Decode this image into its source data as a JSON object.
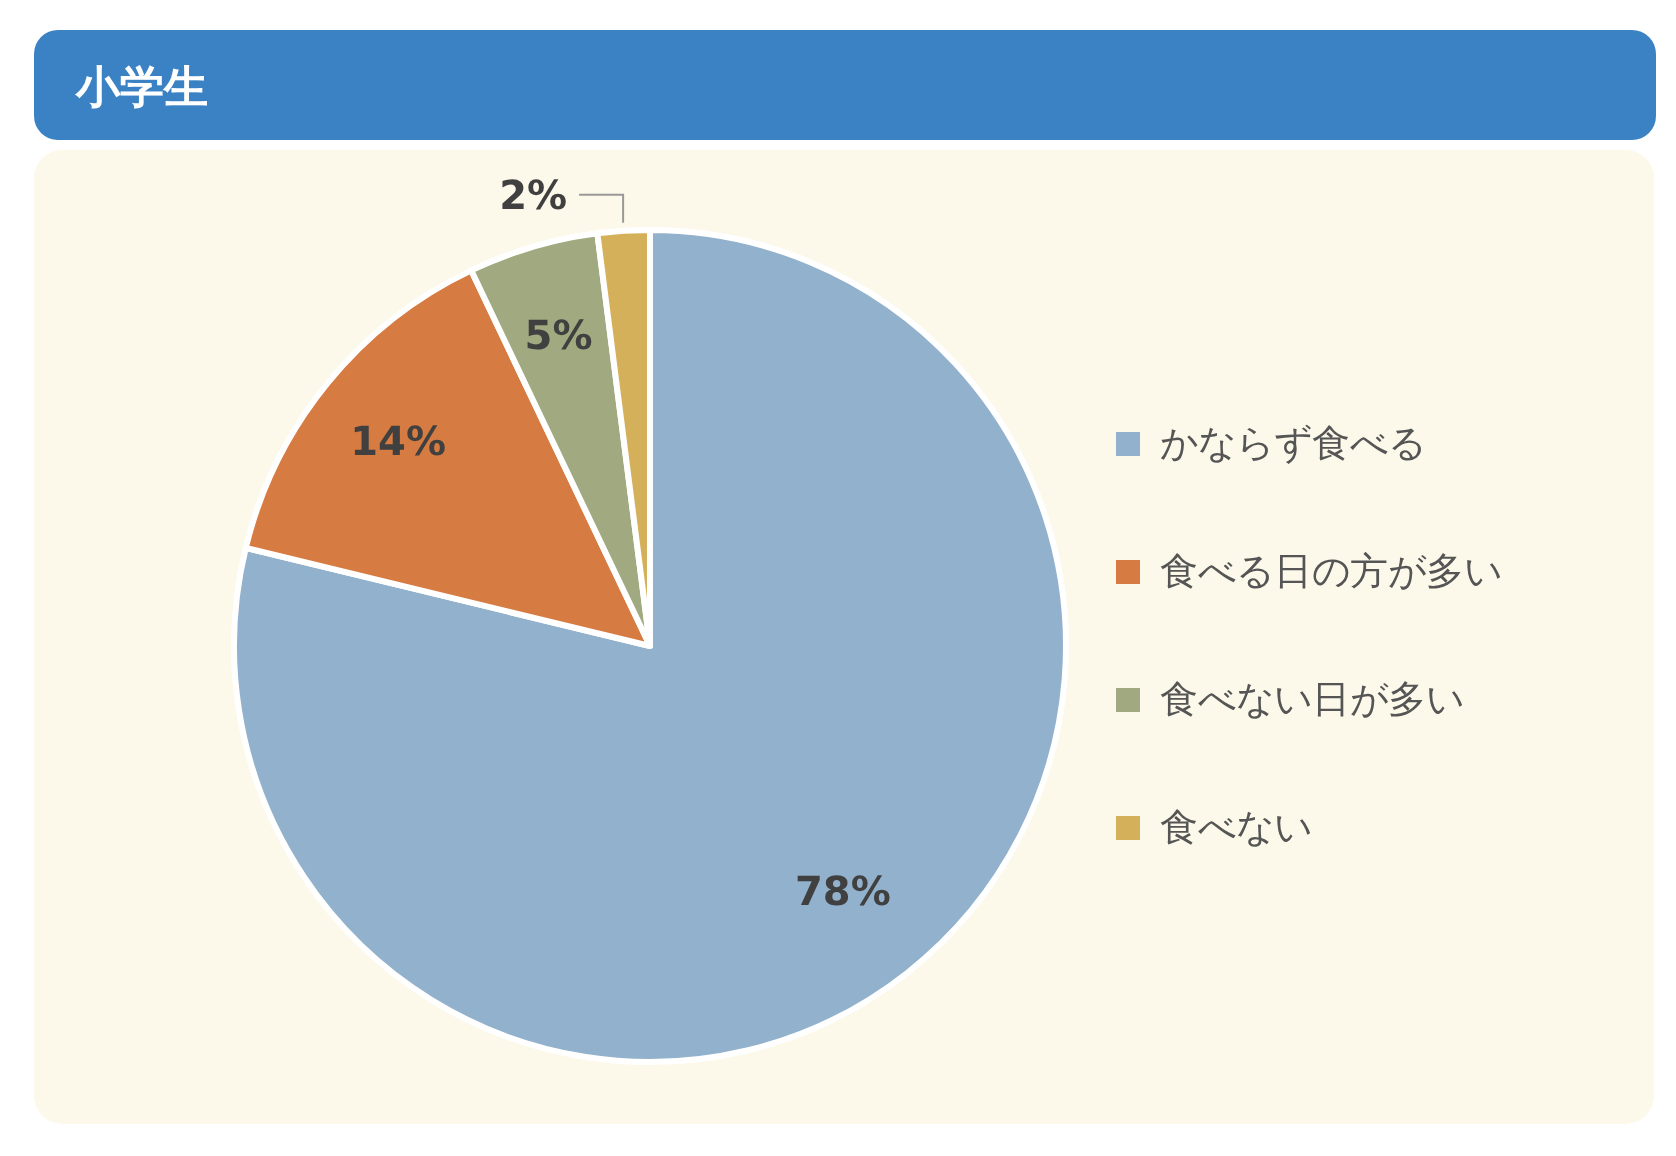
{
  "chart_data": {
    "type": "pie",
    "title": "小学生",
    "categories": [
      "かならず食べる",
      "食べる日の方が多い",
      "食べない日が多い",
      "食べない"
    ],
    "values": [
      78,
      14,
      5,
      2
    ],
    "colors": [
      "#92b1cc",
      "#d67b42",
      "#a0a97f",
      "#d4b05a"
    ],
    "value_labels": [
      "78%",
      "14%",
      "5%",
      "2%"
    ],
    "legend": "right"
  }
}
